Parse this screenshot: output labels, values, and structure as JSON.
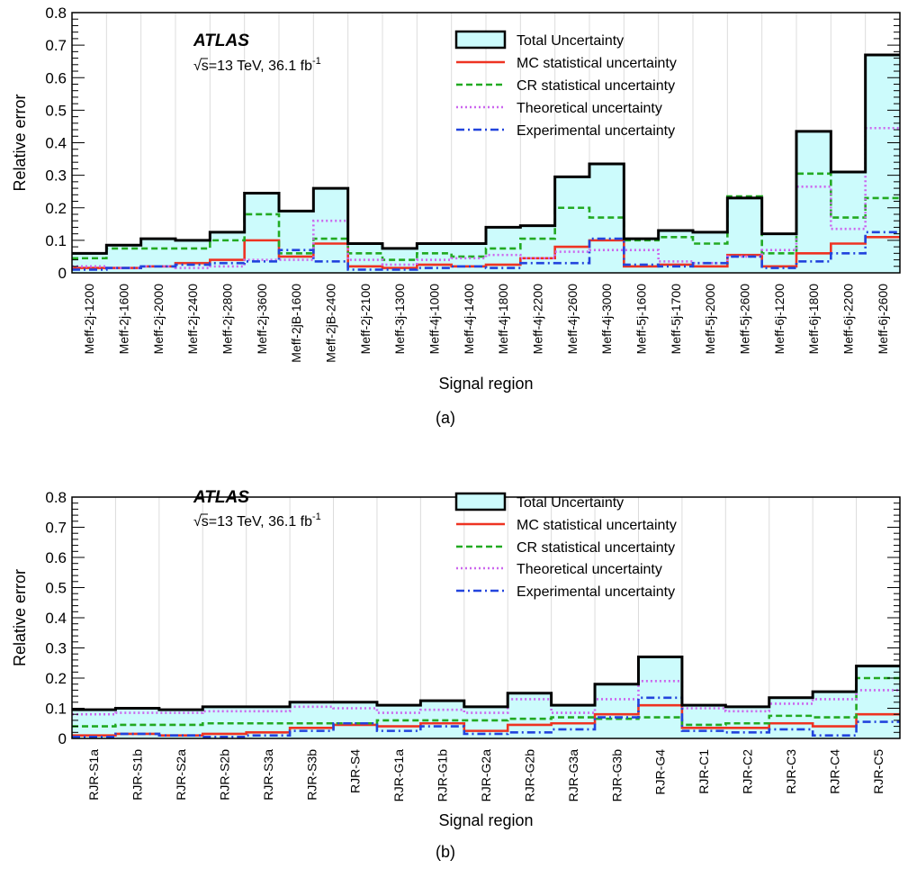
{
  "chart_data": [
    {
      "type": "step",
      "panel_label": "(a)",
      "experiment": "ATLAS",
      "energy_label": "√s=13 TeV, 36.1 fb",
      "energy_superscript": "-1",
      "xlabel": "Signal region",
      "ylabel": "Relative error",
      "ylim": [
        0,
        0.8
      ],
      "yticks": [
        "0",
        "0.1",
        "0.2",
        "0.3",
        "0.4",
        "0.5",
        "0.6",
        "0.7",
        "0.8"
      ],
      "grid": "vertical",
      "legend_position": "top-right",
      "categories": [
        "Meff-2j-1200",
        "Meff-2j-1600",
        "Meff-2j-2000",
        "Meff-2j-2400",
        "Meff-2j-2800",
        "Meff-2j-3600",
        "Meff-2jB-1600",
        "Meff-2jB-2400",
        "Meff-2j-2100",
        "Meff-3j-1300",
        "Meff-4j-1000",
        "Meff-4j-1400",
        "Meff-4j-1800",
        "Meff-4j-2200",
        "Meff-4j-2600",
        "Meff-4j-3000",
        "Meff-5j-1600",
        "Meff-5j-1700",
        "Meff-5j-2000",
        "Meff-5j-2600",
        "Meff-6j-1200",
        "Meff-6j-1800",
        "Meff-6j-2200",
        "Meff-6j-2600"
      ],
      "series": [
        {
          "name": "Total Uncertainty",
          "color": "#000000",
          "fill": "#ccfbfc",
          "values": [
            0.06,
            0.085,
            0.105,
            0.1,
            0.125,
            0.245,
            0.19,
            0.26,
            0.09,
            0.075,
            0.09,
            0.09,
            0.14,
            0.145,
            0.295,
            0.335,
            0.105,
            0.13,
            0.125,
            0.23,
            0.12,
            0.435,
            0.31,
            0.67
          ]
        },
        {
          "name": "MC statistical uncertainty",
          "color": "#ee3322",
          "values": [
            0.015,
            0.015,
            0.02,
            0.03,
            0.04,
            0.1,
            0.05,
            0.09,
            0.02,
            0.015,
            0.025,
            0.02,
            0.025,
            0.045,
            0.08,
            0.1,
            0.02,
            0.025,
            0.02,
            0.055,
            0.02,
            0.06,
            0.09,
            0.11
          ]
        },
        {
          "name": "CR statistical uncertainty",
          "color": "#22aa22",
          "values": [
            0.045,
            0.075,
            0.075,
            0.075,
            0.1,
            0.18,
            0.06,
            0.105,
            0.06,
            0.04,
            0.06,
            0.05,
            0.075,
            0.105,
            0.2,
            0.17,
            0.1,
            0.11,
            0.09,
            0.235,
            0.06,
            0.305,
            0.17,
            0.23
          ]
        },
        {
          "name": "Theoretical uncertainty",
          "color": "#cc66ee",
          "values": [
            0.02,
            0.015,
            0.02,
            0.015,
            0.02,
            0.04,
            0.04,
            0.16,
            0.04,
            0.025,
            0.04,
            0.045,
            0.055,
            0.045,
            0.065,
            0.07,
            0.07,
            0.035,
            0.03,
            0.05,
            0.07,
            0.265,
            0.135,
            0.445
          ]
        },
        {
          "name": "Experimental uncertainty",
          "color": "#2244dd",
          "values": [
            0.01,
            0.015,
            0.02,
            0.025,
            0.03,
            0.035,
            0.07,
            0.035,
            0.01,
            0.01,
            0.015,
            0.02,
            0.015,
            0.03,
            0.03,
            0.105,
            0.025,
            0.02,
            0.03,
            0.05,
            0.015,
            0.035,
            0.06,
            0.125
          ]
        }
      ]
    },
    {
      "type": "step",
      "panel_label": "(b)",
      "experiment": "ATLAS",
      "energy_label": "√s=13 TeV, 36.1 fb",
      "energy_superscript": "-1",
      "xlabel": "Signal region",
      "ylabel": "Relative error",
      "ylim": [
        0,
        0.8
      ],
      "yticks": [
        "0",
        "0.1",
        "0.2",
        "0.3",
        "0.4",
        "0.5",
        "0.6",
        "0.7",
        "0.8"
      ],
      "grid": "vertical",
      "legend_position": "top-right",
      "categories": [
        "RJR-S1a",
        "RJR-S1b",
        "RJR-S2a",
        "RJR-S2b",
        "RJR-S3a",
        "RJR-S3b",
        "RJR-S4",
        "RJR-G1a",
        "RJR-G1b",
        "RJR-G2a",
        "RJR-G2b",
        "RJR-G3a",
        "RJR-G3b",
        "RJR-G4",
        "RJR-C1",
        "RJR-C2",
        "RJR-C3",
        "RJR-C4",
        "RJR-C5"
      ],
      "series": [
        {
          "name": "Total Uncertainty",
          "color": "#000000",
          "fill": "#ccfbfc",
          "values": [
            0.095,
            0.1,
            0.095,
            0.105,
            0.105,
            0.12,
            0.12,
            0.11,
            0.125,
            0.105,
            0.15,
            0.11,
            0.18,
            0.27,
            0.11,
            0.105,
            0.135,
            0.155,
            0.24
          ]
        },
        {
          "name": "MC statistical uncertainty",
          "color": "#ee3322",
          "values": [
            0.01,
            0.015,
            0.01,
            0.015,
            0.02,
            0.035,
            0.045,
            0.04,
            0.05,
            0.025,
            0.045,
            0.05,
            0.08,
            0.11,
            0.035,
            0.035,
            0.05,
            0.04,
            0.08
          ]
        },
        {
          "name": "CR statistical uncertainty",
          "color": "#22aa22",
          "values": [
            0.04,
            0.045,
            0.045,
            0.05,
            0.05,
            0.05,
            0.05,
            0.06,
            0.06,
            0.06,
            0.065,
            0.07,
            0.065,
            0.07,
            0.045,
            0.05,
            0.075,
            0.07,
            0.2
          ]
        },
        {
          "name": "Theoretical uncertainty",
          "color": "#cc66ee",
          "values": [
            0.08,
            0.085,
            0.085,
            0.09,
            0.09,
            0.105,
            0.1,
            0.085,
            0.095,
            0.085,
            0.13,
            0.085,
            0.13,
            0.19,
            0.1,
            0.09,
            0.115,
            0.13,
            0.16
          ]
        },
        {
          "name": "Experimental uncertainty",
          "color": "#2244dd",
          "values": [
            0.005,
            0.015,
            0.01,
            0.005,
            0.01,
            0.025,
            0.05,
            0.025,
            0.04,
            0.015,
            0.02,
            0.03,
            0.07,
            0.135,
            0.025,
            0.02,
            0.03,
            0.01,
            0.055
          ]
        }
      ]
    }
  ]
}
